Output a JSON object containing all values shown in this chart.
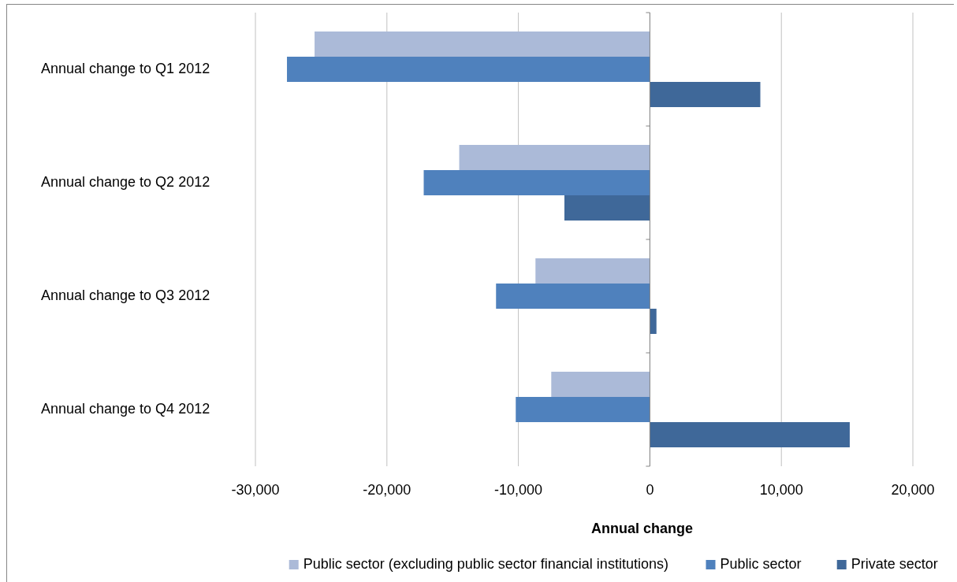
{
  "chart_data": {
    "type": "bar",
    "orientation": "horizontal",
    "xlabel": "Annual change",
    "categories": [
      "Annual change to Q1 2012",
      "Annual change to Q2 2012",
      "Annual change to Q3 2012",
      "Annual change to Q4 2012"
    ],
    "series": [
      {
        "name": "Public sector (excluding public sector financial institutions)",
        "color": "#abbad8",
        "values": [
          -25500,
          -14500,
          -8700,
          -7500
        ]
      },
      {
        "name": "Public sector",
        "color": "#4f81bd",
        "values": [
          -27600,
          -17200,
          -11700,
          -10200
        ]
      },
      {
        "name": "Private sector",
        "color": "#3f6899",
        "values": [
          8400,
          -6500,
          500,
          15200
        ]
      }
    ],
    "xlim": [
      -30000,
      20000
    ],
    "xticks": [
      {
        "value": -30000,
        "label": "-30,000"
      },
      {
        "value": -20000,
        "label": "-20,000"
      },
      {
        "value": -10000,
        "label": "-10,000"
      },
      0,
      {
        "value": 10000,
        "label": "10,000"
      },
      {
        "value": 20000,
        "label": "20,000"
      }
    ],
    "grid": "x",
    "legend": "bottom"
  }
}
